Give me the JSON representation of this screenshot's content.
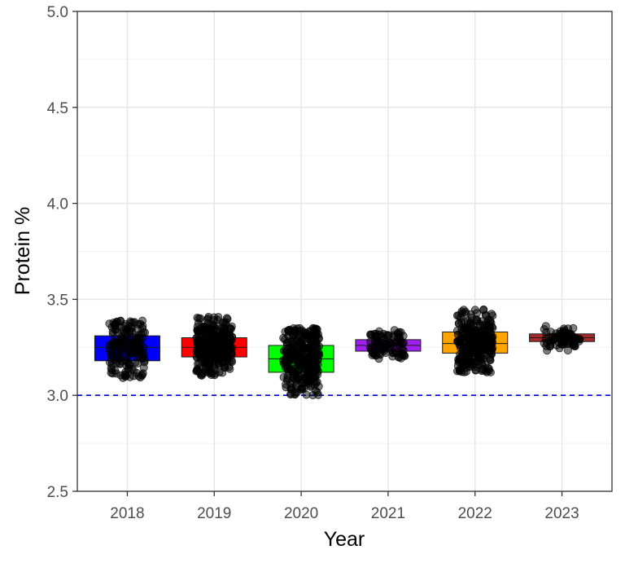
{
  "chart_data": {
    "type": "boxplot",
    "xlabel": "Year",
    "ylabel": "Protein %",
    "ylim": [
      2.5,
      5.0
    ],
    "yticks": [
      "2.5",
      "3.0",
      "3.5",
      "4.0",
      "4.5",
      "5.0"
    ],
    "categories": [
      "2018",
      "2019",
      "2020",
      "2021",
      "2022",
      "2023"
    ],
    "reference_line": {
      "value": 3.0,
      "color": "#0000cc",
      "style": "dashed"
    },
    "grid": true,
    "boxes": [
      {
        "name": "2018",
        "fill": "#0000ff",
        "q1": 3.18,
        "median": 3.25,
        "q3": 3.31,
        "min": 3.09,
        "max": 3.39,
        "n": 160
      },
      {
        "name": "2019",
        "fill": "#ff0000",
        "q1": 3.2,
        "median": 3.25,
        "q3": 3.3,
        "min": 3.1,
        "max": 3.41,
        "n": 320
      },
      {
        "name": "2020",
        "fill": "#00ff00",
        "q1": 3.12,
        "median": 3.19,
        "q3": 3.26,
        "min": 3.0,
        "max": 3.35,
        "n": 300
      },
      {
        "name": "2021",
        "fill": "#a020f0",
        "q1": 3.23,
        "median": 3.26,
        "q3": 3.29,
        "min": 3.19,
        "max": 3.34,
        "n": 90
      },
      {
        "name": "2022",
        "fill": "#ffa500",
        "q1": 3.22,
        "median": 3.27,
        "q3": 3.33,
        "min": 3.12,
        "max": 3.45,
        "n": 280
      },
      {
        "name": "2023",
        "fill": "#a52a2a",
        "q1": 3.28,
        "median": 3.3,
        "q3": 3.32,
        "min": 3.22,
        "max": 3.38,
        "n": 70
      }
    ]
  }
}
